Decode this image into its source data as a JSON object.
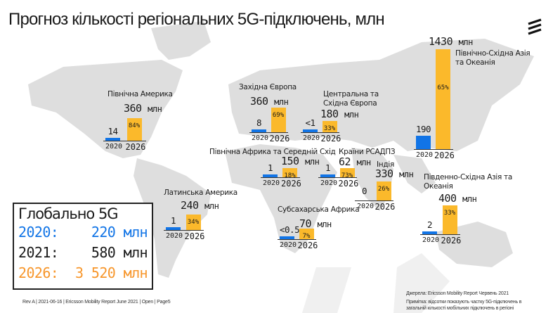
{
  "title": "Прогноз кількості регіональних 5G-підключень, млн",
  "colors": {
    "y2020": "#1174e6",
    "y2026": "#fbb92b",
    "map": "#dcdcdc"
  },
  "year_labels": {
    "y2020": "2020",
    "y2026": "2026"
  },
  "regions": {
    "na": {
      "name": "Північна Америка",
      "v2026": "360",
      "unit": "млн",
      "v2020": "14",
      "pct": "84%"
    },
    "we": {
      "name": "Західна Європа",
      "v2026": "360",
      "unit": "млн",
      "v2020": "8",
      "pct": "69%"
    },
    "cee": {
      "name": "Центральна та Східна Європа",
      "v2026": "180",
      "unit": "млн",
      "v2020": "<1",
      "pct": "33%"
    },
    "mena": {
      "name": "Північна Африка та Середній Схід",
      "v2026": "150",
      "unit": "млн",
      "v2020": "1",
      "pct": "18%"
    },
    "gcc": {
      "name": "Країни РСАДПЗ",
      "v2026": "62",
      "unit": "млн",
      "v2020": "1",
      "pct": "73%"
    },
    "india": {
      "name": "Індія",
      "v2026": "330",
      "unit": "млн",
      "v2020": "0",
      "pct": "26%"
    },
    "latam": {
      "name": "Латинська Америка",
      "v2026": "240",
      "unit": "млн",
      "v2020": "1",
      "pct": "34%"
    },
    "ssa": {
      "name": "Субсахарська Африка",
      "v2026": "70",
      "unit": "млн",
      "v2020": "<0.5",
      "pct": "7%"
    },
    "neasia": {
      "name": "Північно-Східна Азія та Океанія",
      "v2026": "1430",
      "unit": "млн",
      "v2020": "190",
      "pct": "65%"
    },
    "seasia": {
      "name": "Південно-Східна Азія та Океанія",
      "v2026": "400",
      "unit": "млн",
      "v2020": "2",
      "pct": "33%"
    }
  },
  "global": {
    "title": "Глобально 5G",
    "rows": [
      {
        "year": "2020:",
        "value": "220 млн",
        "color": "#1174e6"
      },
      {
        "year": "2021:",
        "value": "580 млн",
        "color": "#1a1a1a"
      },
      {
        "year": "2026:",
        "value": "3 520 млн",
        "color": "#f7962b"
      }
    ]
  },
  "footer": "Rev A | 2021-06-16 | Ericsson Mobility Report June 2021 | Open | Page5",
  "source": "Джерела: Ericsson Mobility Report Червень 2021",
  "note": "Примітка: відсотки показують частку 5G-підключень в загальній кількості мобільних підключень в регіоні"
}
